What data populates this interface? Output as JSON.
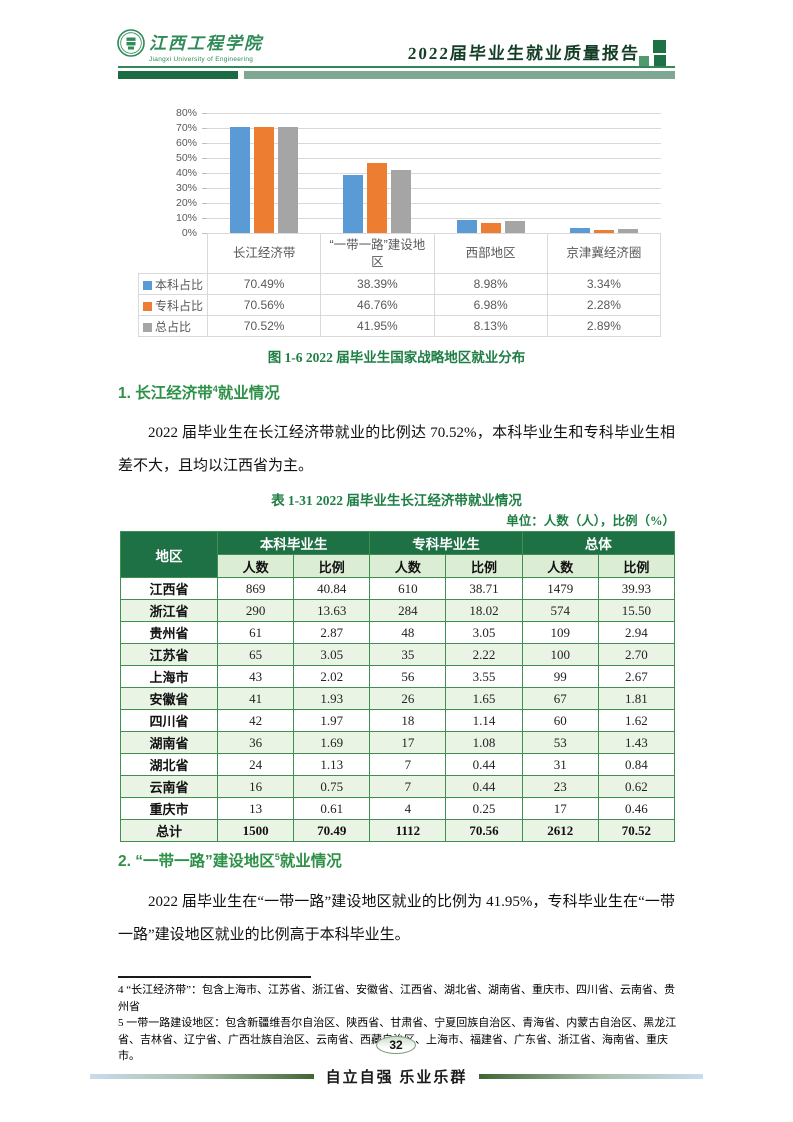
{
  "header": {
    "logo_cn": "江西工程学院",
    "logo_en": "Jiangxi University of Engineering",
    "title": "2022届毕业生就业质量报告"
  },
  "chart_data": {
    "type": "bar",
    "title": "2022届毕业生国家战略地区就业分布",
    "categories": [
      "长江经济带",
      "“一带一路”建设地区",
      "西部地区",
      "京津冀经济圈"
    ],
    "series": [
      {
        "name": "本科占比",
        "color": "#5B9BD5",
        "values": [
          70.49,
          38.39,
          8.98,
          3.34
        ]
      },
      {
        "name": "专科占比",
        "color": "#ED7D31",
        "values": [
          70.56,
          46.76,
          6.98,
          2.28
        ]
      },
      {
        "name": "总占比",
        "color": "#A5A5A5",
        "values": [
          70.52,
          41.95,
          8.13,
          2.89
        ]
      }
    ],
    "ylim": [
      0,
      80
    ],
    "yticks": [
      "80%",
      "70%",
      "60%",
      "50%",
      "40%",
      "30%",
      "20%",
      "10%",
      "0%"
    ],
    "unit": "%",
    "grid": true,
    "legend_position": "bottom-table"
  },
  "figure_caption": "图 1-6 2022 届毕业生国家战略地区就业分布",
  "section1": {
    "heading_main": "1. 长江经济带",
    "heading_sup": "4",
    "heading_tail": "就业情况",
    "paragraph": "2022 届毕业生在长江经济带就业的比例达 70.52%，本科毕业生和专科毕业生相差不大，且均以江西省为主。"
  },
  "table": {
    "caption": "表 1-31 2022 届毕业生长江经济带就业情况",
    "unit_note": "单位：人数（人），比例（%）",
    "col_groups": [
      "地区",
      "本科毕业生",
      "专科毕业生",
      "总体"
    ],
    "sub_headers": [
      "人数",
      "比例"
    ],
    "rows": [
      [
        "江西省",
        "869",
        "40.84",
        "610",
        "38.71",
        "1479",
        "39.93"
      ],
      [
        "浙江省",
        "290",
        "13.63",
        "284",
        "18.02",
        "574",
        "15.50"
      ],
      [
        "贵州省",
        "61",
        "2.87",
        "48",
        "3.05",
        "109",
        "2.94"
      ],
      [
        "江苏省",
        "65",
        "3.05",
        "35",
        "2.22",
        "100",
        "2.70"
      ],
      [
        "上海市",
        "43",
        "2.02",
        "56",
        "3.55",
        "99",
        "2.67"
      ],
      [
        "安徽省",
        "41",
        "1.93",
        "26",
        "1.65",
        "67",
        "1.81"
      ],
      [
        "四川省",
        "42",
        "1.97",
        "18",
        "1.14",
        "60",
        "1.62"
      ],
      [
        "湖南省",
        "36",
        "1.69",
        "17",
        "1.08",
        "53",
        "1.43"
      ],
      [
        "湖北省",
        "24",
        "1.13",
        "7",
        "0.44",
        "31",
        "0.84"
      ],
      [
        "云南省",
        "16",
        "0.75",
        "7",
        "0.44",
        "23",
        "0.62"
      ],
      [
        "重庆市",
        "13",
        "0.61",
        "4",
        "0.25",
        "17",
        "0.46"
      ],
      [
        "总计",
        "1500",
        "70.49",
        "1112",
        "70.56",
        "2612",
        "70.52"
      ]
    ]
  },
  "section2": {
    "heading_main": "2. “一带一路”建设地区",
    "heading_sup": "5",
    "heading_tail": "就业情况",
    "paragraph": "2022 届毕业生在“一带一路”建设地区就业的比例为 41.95%，专科毕业生在“一带一路”建设地区就业的比例高于本科毕业生。"
  },
  "footnotes": [
    {
      "num": "4",
      "text": "“长江经济带”：包含上海市、江苏省、浙江省、安徽省、江西省、湖北省、湖南省、重庆市、四川省、云南省、贵州省"
    },
    {
      "num": "5",
      "text": "一带一路建设地区：包含新疆维吾尔自治区、陕西省、甘肃省、宁夏回族自治区、青海省、内蒙古自治区、黑龙江省、吉林省、辽宁省、广西壮族自治区、云南省、西藏自治区、上海市、福建省、广东省、浙江省、海南省、重庆市。"
    }
  ],
  "footer": {
    "page_number": "32",
    "motto": "自立自强 乐业乐群"
  },
  "colors": {
    "brand_dark_green": "#1E7145",
    "header_bar_sage": "#7FA893",
    "table_border_green": "#3E9050",
    "table_subheader_bg": "#DCEDD5",
    "table_alt_row_bg": "#EAF4E5",
    "caption_green": "#1E7E44",
    "bar_blue": "#5B9BD5",
    "bar_orange": "#ED7D31",
    "bar_gray": "#A5A5A5"
  }
}
